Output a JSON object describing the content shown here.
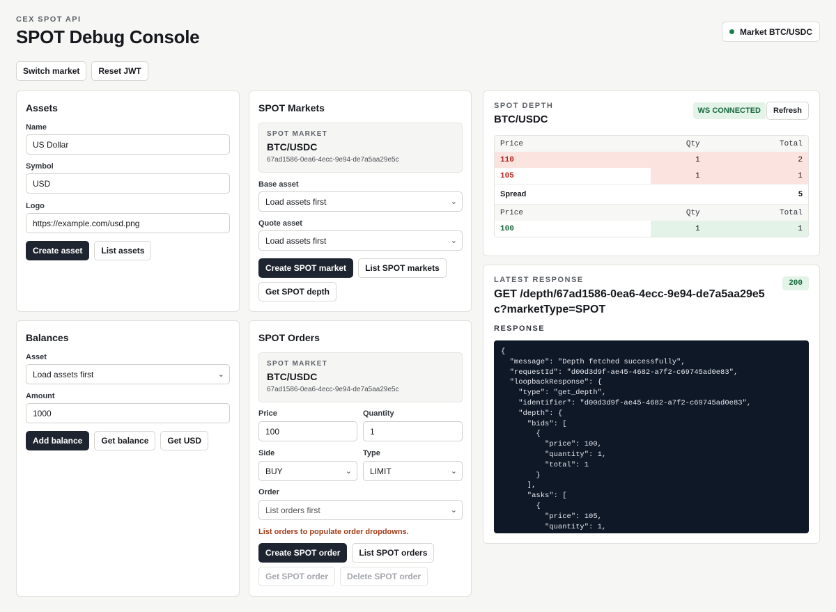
{
  "header": {
    "eyebrow": "CEX SPOT API",
    "title": "SPOT Debug Console",
    "market_pill": "Market BTC/USDC",
    "buttons": {
      "switch_market": "Switch market",
      "reset_jwt": "Reset JWT"
    }
  },
  "assets": {
    "title": "Assets",
    "name_label": "Name",
    "name_value": "US Dollar",
    "symbol_label": "Symbol",
    "symbol_value": "USD",
    "logo_label": "Logo",
    "logo_value": "https://example.com/usd.png",
    "create_button": "Create asset",
    "list_button": "List assets"
  },
  "markets": {
    "title": "SPOT Markets",
    "box_label": "SPOT MARKET",
    "box_market": "BTC/USDC",
    "box_id": "67ad1586-0ea6-4ecc-9e94-de7a5aa29e5c",
    "base_label": "Base asset",
    "base_value": "Load assets first",
    "quote_label": "Quote asset",
    "quote_value": "Load assets first",
    "create_button": "Create SPOT market",
    "list_button": "List SPOT markets",
    "depth_button": "Get SPOT depth"
  },
  "balances": {
    "title": "Balances",
    "asset_label": "Asset",
    "asset_value": "Load assets first",
    "amount_label": "Amount",
    "amount_value": "1000",
    "add_button": "Add balance",
    "get_button": "Get balance",
    "get_usd_button": "Get USD"
  },
  "orders": {
    "title": "SPOT Orders",
    "box_label": "SPOT MARKET",
    "box_market": "BTC/USDC",
    "box_id": "67ad1586-0ea6-4ecc-9e94-de7a5aa29e5c",
    "price_label": "Price",
    "price_value": "100",
    "qty_label": "Quantity",
    "qty_value": "1",
    "side_label": "Side",
    "side_value": "BUY",
    "type_label": "Type",
    "type_value": "LIMIT",
    "order_label": "Order",
    "order_value": "List orders first",
    "warning": "List orders to populate order dropdowns.",
    "create_button": "Create SPOT order",
    "list_button": "List SPOT orders",
    "get_button": "Get SPOT order",
    "delete_button": "Delete SPOT order"
  },
  "depth": {
    "eyebrow": "SPOT DEPTH",
    "market": "BTC/USDC",
    "ws_status": "WS CONNECTED",
    "refresh_button": "Refresh",
    "columns": [
      "Price",
      "Qty",
      "Total"
    ],
    "asks": [
      {
        "price": "110",
        "qty": "1",
        "total": "2",
        "fill": 1.0
      },
      {
        "price": "105",
        "qty": "1",
        "total": "1",
        "fill": 0.5
      }
    ],
    "spread_label": "Spread",
    "spread_value": "5",
    "bids": [
      {
        "price": "100",
        "qty": "1",
        "total": "1",
        "fill": 0.5
      }
    ]
  },
  "response": {
    "eyebrow": "LATEST RESPONSE",
    "status": "200",
    "title": "GET /depth/67ad1586-0ea6-4ecc-9e94-de7a5aa29e5c?marketType=SPOT",
    "label": "RESPONSE",
    "body": "{\n  \"message\": \"Depth fetched successfully\",\n  \"requestId\": \"d00d3d9f-ae45-4682-a7f2-c69745ad0e83\",\n  \"loopbackResponse\": {\n    \"type\": \"get_depth\",\n    \"identifier\": \"d00d3d9f-ae45-4682-a7f2-c69745ad0e83\",\n    \"depth\": {\n      \"bids\": [\n        {\n          \"price\": 100,\n          \"quantity\": 1,\n          \"total\": 1\n        }\n      ],\n      \"asks\": [\n        {\n          \"price\": 105,\n          \"quantity\": 1,"
  },
  "colors": {
    "accent_dark": "#1f2530",
    "ask_red": "#b3261e",
    "bid_green": "#17673c",
    "code_bg": "#0f1827"
  }
}
